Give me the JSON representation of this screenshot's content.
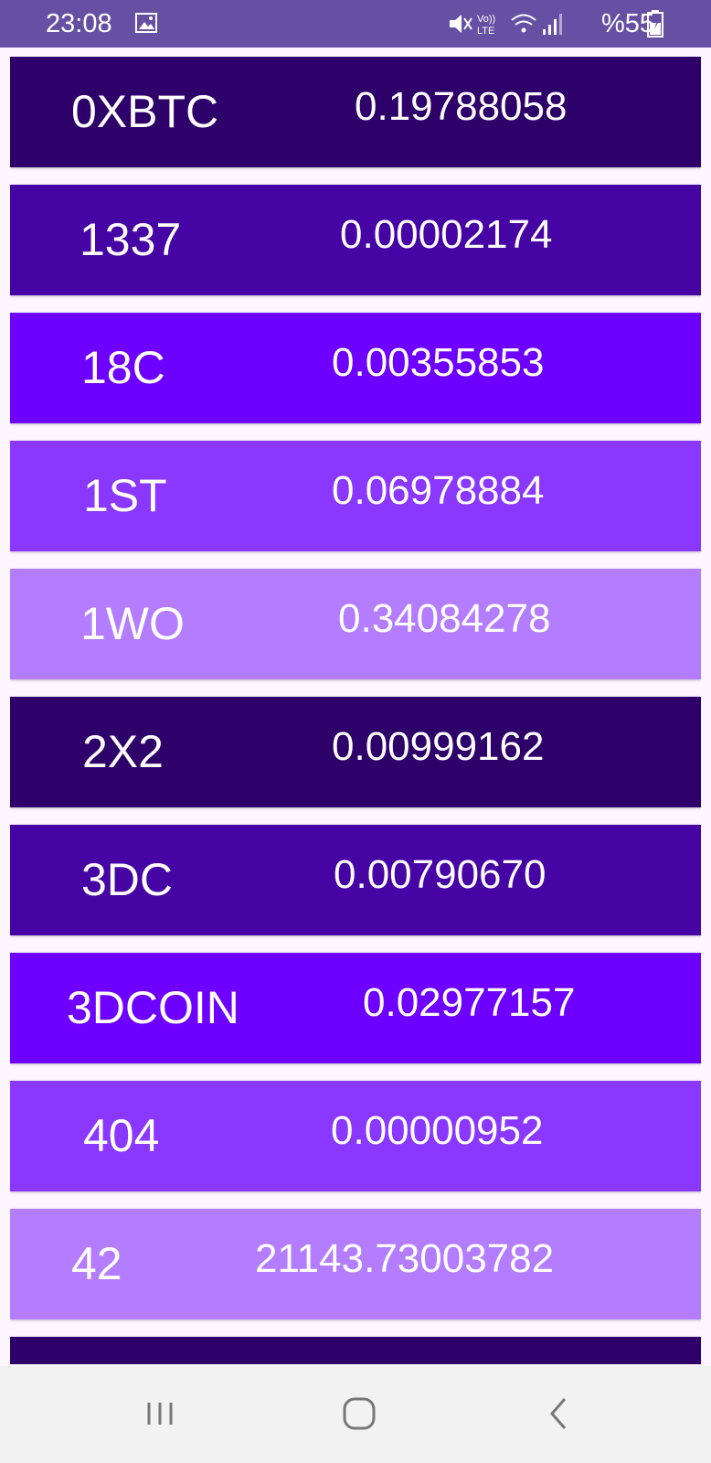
{
  "status_bar": {
    "time": "23:08",
    "battery": "%55",
    "icons": [
      "image-icon",
      "mute-icon",
      "volte-icon",
      "wifi-icon",
      "signal-icon",
      "battery-icon"
    ],
    "background_color": "#6650a4"
  },
  "coins": [
    {
      "name": "0XBTC",
      "price": "0.19788058",
      "color": "#2e0069"
    },
    {
      "name": "1337",
      "price": "0.00002174",
      "color": "#4604a4"
    },
    {
      "name": "18C",
      "price": "0.00355853",
      "color": "#6e00ff"
    },
    {
      "name": "1ST",
      "price": "0.06978884",
      "color": "#8a37ff"
    },
    {
      "name": "1WO",
      "price": "0.34084278",
      "color": "#b47dff"
    },
    {
      "name": "2X2",
      "price": "0.00999162",
      "color": "#2e0069"
    },
    {
      "name": "3DC",
      "price": "0.00790670",
      "color": "#4604a4"
    },
    {
      "name": "3DCOIN",
      "price": "0.02977157",
      "color": "#6e00ff"
    },
    {
      "name": "404",
      "price": "0.00000952",
      "color": "#8a37ff"
    },
    {
      "name": "42",
      "price": "21143.73003782",
      "color": "#b47dff"
    },
    {
      "name": "",
      "price": "",
      "color": "#2e0069"
    }
  ],
  "nav_bar": {
    "buttons": [
      "recent-apps-icon",
      "home-icon",
      "back-icon"
    ]
  }
}
